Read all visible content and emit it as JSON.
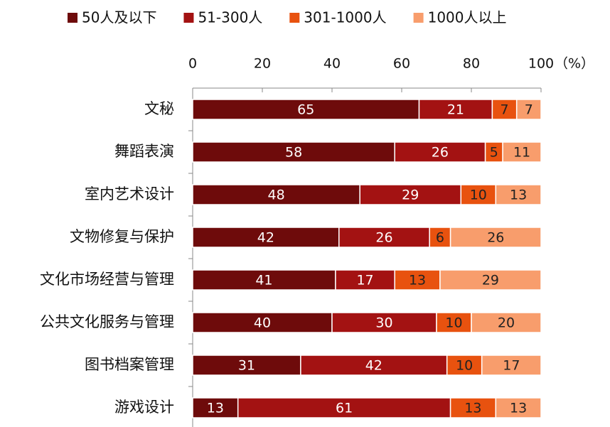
{
  "chart_data": {
    "type": "stacked_barh",
    "xlabel": "（%）",
    "categories": [
      "文秘",
      "舞蹈表演",
      "室内艺术设计",
      "文物修复与保护",
      "文化市场经营与管理",
      "公共文化服务与管理",
      "图书档案管理",
      "游戏设计"
    ],
    "series": [
      {
        "name": "50人及以下",
        "color": "#6e0b0b",
        "values": [
          65,
          58,
          48,
          42,
          41,
          40,
          31,
          13
        ]
      },
      {
        "name": "51-300人",
        "color": "#a31212",
        "values": [
          21,
          26,
          29,
          26,
          17,
          30,
          42,
          61
        ]
      },
      {
        "name": "301-1000人",
        "color": "#e8520f",
        "values": [
          7,
          5,
          10,
          6,
          13,
          10,
          10,
          13
        ]
      },
      {
        "name": "1000人以上",
        "color": "#f89d6c",
        "values": [
          7,
          11,
          13,
          26,
          29,
          20,
          17,
          13
        ]
      }
    ],
    "xlim": [
      0,
      100
    ],
    "xticks": [
      0,
      20,
      40,
      60,
      80,
      100
    ],
    "legend": "top"
  }
}
